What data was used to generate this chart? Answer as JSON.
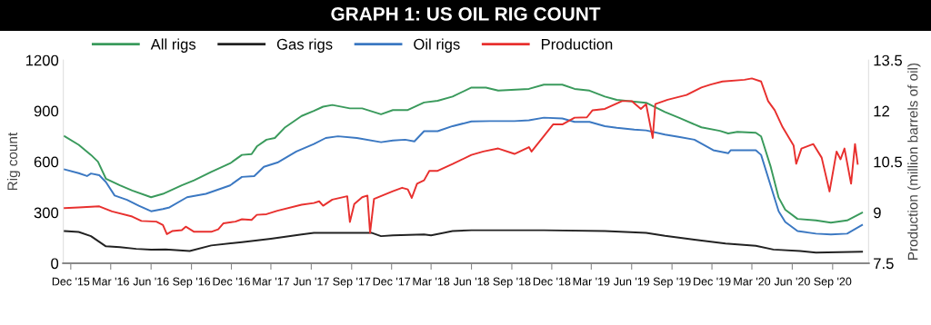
{
  "chart_data": {
    "type": "line",
    "title": "GRAPH 1: US OIL RIG COUNT",
    "ylabel": "Rig count",
    "y2label": "Production (million barrels of oil)",
    "xlim": [
      "2015-11-14",
      "2020-11-22"
    ],
    "xticks": [
      {
        "value": "2015-12-01",
        "label": "Dec '15"
      },
      {
        "value": "2016-03-01",
        "label": "Mar '16"
      },
      {
        "value": "2016-06-01",
        "label": "Jun '16"
      },
      {
        "value": "2016-09-01",
        "label": "Sep '16"
      },
      {
        "value": "2016-12-01",
        "label": "Dec '16"
      },
      {
        "value": "2017-03-01",
        "label": "Mar '17"
      },
      {
        "value": "2017-06-01",
        "label": "Jun '17"
      },
      {
        "value": "2017-09-01",
        "label": "Sep '17"
      },
      {
        "value": "2017-12-01",
        "label": "Dec '17"
      },
      {
        "value": "2018-03-01",
        "label": "Mar '18"
      },
      {
        "value": "2018-06-01",
        "label": "Jun '18"
      },
      {
        "value": "2018-09-01",
        "label": "Sep '18"
      },
      {
        "value": "2018-12-01",
        "label": "Dec '18"
      },
      {
        "value": "2019-03-01",
        "label": "Mar '19"
      },
      {
        "value": "2019-06-01",
        "label": "Jun '19"
      },
      {
        "value": "2019-09-01",
        "label": "Sep '19"
      },
      {
        "value": "2019-12-01",
        "label": "Dec '19"
      },
      {
        "value": "2020-03-01",
        "label": "Mar '20"
      },
      {
        "value": "2020-06-01",
        "label": "Jun '20"
      },
      {
        "value": "2020-09-01",
        "label": "Sep '20"
      }
    ],
    "ylim": [
      0,
      1200
    ],
    "yticks": [
      0,
      300,
      600,
      900,
      1200
    ],
    "y2lim": [
      7.5,
      13.5
    ],
    "y2ticks": [
      7.5,
      9,
      10.5,
      12,
      13.5
    ],
    "legend": "top left",
    "grid": false,
    "marker": "none",
    "line_style": "solid",
    "series": [
      {
        "name": "All rigs",
        "color": "#3a9a5c",
        "x": [
          "2015-11-17",
          "2015-12-19",
          "2016-01-16",
          "2016-02-01",
          "2016-02-19",
          "2016-03-22",
          "2016-04-19",
          "2016-06-01",
          "2016-06-28",
          "2016-08-10",
          "2016-09-07",
          "2016-10-16",
          "2016-11-28",
          "2016-12-25",
          "2017-01-16",
          "2017-01-28",
          "2017-02-19",
          "2017-03-10",
          "2017-04-01",
          "2017-05-10",
          "2017-06-07",
          "2017-06-28",
          "2017-07-19",
          "2017-08-28",
          "2017-09-25",
          "2017-11-07",
          "2017-12-04",
          "2018-01-07",
          "2018-02-13",
          "2018-03-16",
          "2018-04-19",
          "2018-06-01",
          "2018-07-04",
          "2018-08-01",
          "2018-10-10",
          "2018-11-13",
          "2018-12-25",
          "2019-01-22",
          "2019-02-25",
          "2019-04-01",
          "2019-04-28",
          "2019-06-07",
          "2019-07-04",
          "2019-08-16",
          "2019-09-19",
          "2019-11-07",
          "2019-12-19",
          "2020-01-07",
          "2020-01-28",
          "2020-03-10",
          "2020-03-22",
          "2020-04-13",
          "2020-05-01",
          "2020-05-16",
          "2020-06-13",
          "2020-07-25",
          "2020-08-28",
          "2020-10-04",
          "2020-11-07"
        ],
        "values": [
          750,
          700,
          640,
          600,
          500,
          460,
          430,
          390,
          410,
          460,
          490,
          540,
          590,
          640,
          645,
          690,
          730,
          740,
          800,
          870,
          900,
          925,
          935,
          915,
          915,
          880,
          905,
          905,
          950,
          960,
          985,
          1038,
          1038,
          1020,
          1030,
          1055,
          1055,
          1030,
          1020,
          985,
          965,
          955,
          948,
          893,
          857,
          803,
          782,
          767,
          776,
          771,
          749,
          569,
          388,
          316,
          262,
          253,
          240,
          253,
          298
        ]
      },
      {
        "name": "Gas rigs",
        "color": "#222222",
        "x": [
          "2015-11-17",
          "2015-12-19",
          "2016-01-16",
          "2016-02-19",
          "2016-03-22",
          "2016-04-28",
          "2016-06-01",
          "2016-07-04",
          "2016-08-28",
          "2016-10-16",
          "2016-12-25",
          "2017-03-01",
          "2017-05-10",
          "2017-06-07",
          "2017-09-25",
          "2017-10-16",
          "2017-11-07",
          "2017-12-04",
          "2018-02-13",
          "2018-03-01",
          "2018-04-19",
          "2018-06-01",
          "2018-11-13",
          "2019-04-01",
          "2019-07-04",
          "2019-08-16",
          "2019-10-22",
          "2020-01-01",
          "2020-03-10",
          "2020-04-19",
          "2020-06-19",
          "2020-07-25",
          "2020-11-07"
        ],
        "values": [
          190,
          185,
          160,
          100,
          95,
          85,
          80,
          82,
          72,
          105,
          125,
          145,
          170,
          180,
          180,
          180,
          160,
          165,
          170,
          165,
          190,
          195,
          195,
          190,
          180,
          162,
          139,
          117,
          103,
          81,
          72,
          63,
          68
        ]
      },
      {
        "name": "Oil rigs",
        "color": "#3b78c2",
        "x": [
          "2015-11-17",
          "2015-12-19",
          "2016-01-07",
          "2016-01-16",
          "2016-02-04",
          "2016-02-19",
          "2016-03-10",
          "2016-04-07",
          "2016-05-04",
          "2016-06-01",
          "2016-06-28",
          "2016-07-13",
          "2016-08-22",
          "2016-10-04",
          "2016-11-28",
          "2016-12-25",
          "2017-01-22",
          "2017-02-13",
          "2017-03-16",
          "2017-04-28",
          "2017-06-07",
          "2017-07-04",
          "2017-08-01",
          "2017-09-13",
          "2017-11-07",
          "2017-12-04",
          "2018-01-01",
          "2018-01-22",
          "2018-02-13",
          "2018-03-16",
          "2018-04-19",
          "2018-06-01",
          "2018-07-13",
          "2018-09-07",
          "2018-10-10",
          "2018-11-13",
          "2018-12-25",
          "2019-01-22",
          "2019-02-25",
          "2019-04-01",
          "2019-04-28",
          "2019-06-07",
          "2019-07-04",
          "2019-08-16",
          "2019-09-19",
          "2019-10-22",
          "2019-12-04",
          "2020-01-07",
          "2020-01-13",
          "2020-03-10",
          "2020-03-22",
          "2020-05-01",
          "2020-05-16",
          "2020-06-13",
          "2020-07-25",
          "2020-08-28",
          "2020-10-04",
          "2020-11-07"
        ],
        "values": [
          554,
          532,
          515,
          530,
          520,
          480,
          400,
          375,
          340,
          307,
          320,
          330,
          390,
          410,
          460,
          510,
          515,
          570,
          595,
          660,
          705,
          740,
          750,
          740,
          715,
          725,
          730,
          720,
          780,
          780,
          810,
          838,
          840,
          840,
          845,
          860,
          855,
          835,
          835,
          810,
          800,
          790,
          785,
          760,
          745,
          730,
          668,
          650,
          668,
          668,
          640,
          307,
          244,
          190,
          175,
          170,
          175,
          226
        ]
      },
      {
        "name": "Production",
        "color": "#e8302e",
        "axis": "y2",
        "x": [
          "2015-11-17",
          "2015-12-19",
          "2016-02-04",
          "2016-03-04",
          "2016-04-19",
          "2016-05-10",
          "2016-06-13",
          "2016-06-28",
          "2016-07-07",
          "2016-07-19",
          "2016-08-10",
          "2016-08-19",
          "2016-09-07",
          "2016-10-16",
          "2016-11-01",
          "2016-11-13",
          "2016-12-10",
          "2016-12-25",
          "2017-01-16",
          "2017-01-28",
          "2017-02-19",
          "2017-03-16",
          "2017-05-10",
          "2017-06-07",
          "2017-06-19",
          "2017-06-28",
          "2017-07-19",
          "2017-08-22",
          "2017-08-28",
          "2017-09-07",
          "2017-09-25",
          "2017-10-07",
          "2017-10-13",
          "2017-10-22",
          "2017-12-04",
          "2017-12-25",
          "2018-01-07",
          "2018-01-16",
          "2018-01-28",
          "2018-02-13",
          "2018-02-25",
          "2018-03-16",
          "2018-04-19",
          "2018-06-01",
          "2018-06-28",
          "2018-08-01",
          "2018-09-07",
          "2018-10-10",
          "2018-10-16",
          "2018-12-04",
          "2018-12-25",
          "2019-01-22",
          "2019-02-19",
          "2019-03-04",
          "2019-04-01",
          "2019-05-10",
          "2019-06-01",
          "2019-06-22",
          "2019-07-04",
          "2019-07-19",
          "2019-07-25",
          "2019-08-22",
          "2019-10-04",
          "2019-11-07",
          "2019-11-28",
          "2019-12-25",
          "2020-02-13",
          "2020-03-01",
          "2020-03-22",
          "2020-04-07",
          "2020-04-22",
          "2020-05-10",
          "2020-06-04",
          "2020-06-10",
          "2020-06-22",
          "2020-07-19",
          "2020-08-07",
          "2020-08-25",
          "2020-09-10",
          "2020-09-19",
          "2020-09-28",
          "2020-10-13",
          "2020-10-22",
          "2020-10-28"
        ],
        "values": [
          9.13,
          9.15,
          9.18,
          9.03,
          8.88,
          8.75,
          8.73,
          8.63,
          8.36,
          8.45,
          8.48,
          8.58,
          8.43,
          8.43,
          8.5,
          8.68,
          8.73,
          8.8,
          8.78,
          8.93,
          8.95,
          9.05,
          9.23,
          9.28,
          9.33,
          9.2,
          9.38,
          9.48,
          8.72,
          9.25,
          9.45,
          9.5,
          8.4,
          9.4,
          9.63,
          9.73,
          9.68,
          9.43,
          9.85,
          9.95,
          10.23,
          10.23,
          10.43,
          10.7,
          10.8,
          10.89,
          10.73,
          10.93,
          10.8,
          11.6,
          11.6,
          11.8,
          11.81,
          12.02,
          12.06,
          12.29,
          12.29,
          12.06,
          12.2,
          11.2,
          12.2,
          12.33,
          12.47,
          12.69,
          12.78,
          12.87,
          12.92,
          12.96,
          12.87,
          12.29,
          12.02,
          11.52,
          10.98,
          10.44,
          10.89,
          11.02,
          10.62,
          9.62,
          10.8,
          10.57,
          10.89,
          9.85,
          11.02,
          10.44
        ]
      }
    ]
  }
}
